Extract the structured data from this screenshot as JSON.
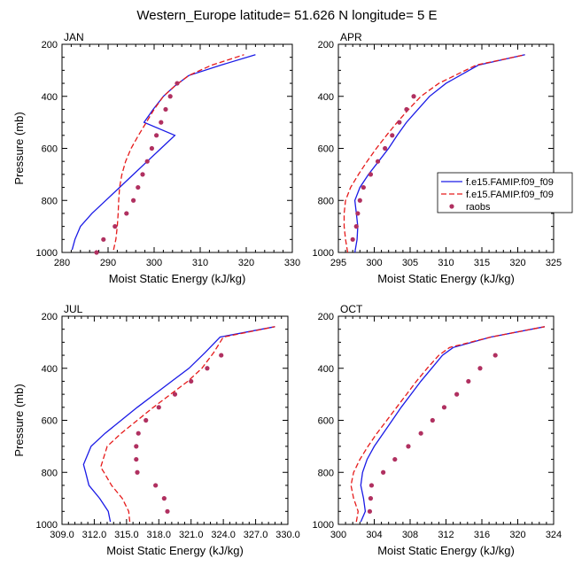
{
  "figure": {
    "title": "Western_Europe  latitude= 51.626 N longitude= 5 E"
  },
  "colors": {
    "model1": "#1a1ae6",
    "model2": "#e61a1a",
    "raobs": "#b03060"
  },
  "legend": {
    "placement": "right",
    "entries": [
      "f.e15.FAMIP.f09_f09",
      "f.e15.FAMIP.f09_f09",
      "raobs"
    ]
  },
  "chart_data": [
    {
      "type": "line",
      "panel": "JAN",
      "title": "JAN",
      "xlabel": "Moist Static Energy (kJ/kg)",
      "ylabel": "Pressure (mb)",
      "xlim": [
        280,
        330
      ],
      "ylim": [
        200,
        1000
      ],
      "y_inverted": true,
      "xticks": [
        280,
        290,
        300,
        310,
        320,
        330
      ],
      "xtick_labels": [
        "280",
        "290",
        "300",
        "310",
        "320",
        "330"
      ],
      "yticks": [
        200,
        400,
        600,
        800,
        1000
      ],
      "series": [
        {
          "name": "f.e15.FAMIP.f09_f09",
          "style": "solid",
          "points": [
            [
              282.2,
              990
            ],
            [
              282.8,
              950
            ],
            [
              284,
              900
            ],
            [
              286.5,
              850
            ],
            [
              289.5,
              800
            ],
            [
              292.5,
              750
            ],
            [
              295.5,
              700
            ],
            [
              298.5,
              650
            ],
            [
              301.5,
              600
            ],
            [
              304.5,
              550
            ],
            [
              297.8,
              500
            ],
            [
              299.8,
              450
            ],
            [
              302,
              400
            ],
            [
              304.5,
              360
            ],
            [
              307.5,
              320
            ],
            [
              314.5,
              280
            ],
            [
              322,
              240
            ]
          ]
        },
        {
          "name": "f.e15.FAMIP.f09_f09",
          "style": "dashed",
          "points": [
            [
              291.2,
              990
            ],
            [
              291.7,
              950
            ],
            [
              292,
              900
            ],
            [
              292.2,
              850
            ],
            [
              292.3,
              800
            ],
            [
              292.5,
              750
            ],
            [
              293,
              700
            ],
            [
              293.8,
              650
            ],
            [
              295,
              600
            ],
            [
              296.6,
              550
            ],
            [
              298.3,
              500
            ],
            [
              300,
              450
            ],
            [
              302,
              400
            ],
            [
              304.5,
              360
            ],
            [
              307.5,
              320
            ],
            [
              312.5,
              280
            ],
            [
              319.5,
              240
            ]
          ]
        },
        {
          "name": "raobs",
          "style": "markers",
          "points": [
            [
              287.5,
              1000
            ],
            [
              289,
              950
            ],
            [
              291.5,
              900
            ],
            [
              294,
              850
            ],
            [
              295.5,
              800
            ],
            [
              296.5,
              750
            ],
            [
              297.5,
              700
            ],
            [
              298.5,
              650
            ],
            [
              299.5,
              600
            ],
            [
              300.5,
              550
            ],
            [
              301.5,
              500
            ],
            [
              302.5,
              450
            ],
            [
              303.5,
              400
            ],
            [
              305,
              350
            ]
          ]
        }
      ]
    },
    {
      "type": "line",
      "panel": "APR",
      "title": "APR",
      "xlabel": "Moist Static Energy (kJ/kg)",
      "ylabel": "",
      "xlim": [
        295,
        325
      ],
      "ylim": [
        200,
        1000
      ],
      "y_inverted": true,
      "xticks": [
        295,
        300,
        305,
        310,
        315,
        320,
        325
      ],
      "xtick_labels": [
        "295",
        "300",
        "305",
        "310",
        "315",
        "320",
        "325"
      ],
      "yticks": [
        200,
        400,
        600,
        800,
        1000
      ],
      "series": [
        {
          "name": "f.e15.FAMIP.f09_f09",
          "style": "solid",
          "points": [
            [
              297.3,
              1000
            ],
            [
              297.6,
              950
            ],
            [
              297.7,
              900
            ],
            [
              297.5,
              850
            ],
            [
              297.3,
              800
            ],
            [
              298,
              750
            ],
            [
              299.2,
              700
            ],
            [
              300.6,
              650
            ],
            [
              302,
              600
            ],
            [
              303.2,
              550
            ],
            [
              304.5,
              500
            ],
            [
              306.1,
              450
            ],
            [
              307.7,
              400
            ],
            [
              310,
              350
            ],
            [
              314.5,
              280
            ],
            [
              321,
              240
            ]
          ]
        },
        {
          "name": "f.e15.FAMIP.f09_f09",
          "style": "dashed",
          "points": [
            [
              296.3,
              1000
            ],
            [
              296,
              950
            ],
            [
              295.8,
              900
            ],
            [
              295.8,
              850
            ],
            [
              296,
              800
            ],
            [
              296.7,
              750
            ],
            [
              297.8,
              700
            ],
            [
              299,
              650
            ],
            [
              300.3,
              600
            ],
            [
              301.7,
              550
            ],
            [
              303.2,
              500
            ],
            [
              304.8,
              450
            ],
            [
              306.5,
              400
            ],
            [
              309,
              350
            ],
            [
              314.2,
              280
            ],
            [
              321,
              240
            ]
          ]
        },
        {
          "name": "raobs",
          "style": "markers",
          "points": [
            [
              297,
              950
            ],
            [
              297.5,
              900
            ],
            [
              297.7,
              850
            ],
            [
              298,
              800
            ],
            [
              298.5,
              750
            ],
            [
              299.5,
              700
            ],
            [
              300.5,
              650
            ],
            [
              301.5,
              600
            ],
            [
              302.5,
              550
            ],
            [
              303.5,
              500
            ],
            [
              304.5,
              450
            ],
            [
              305.5,
              400
            ]
          ]
        }
      ]
    },
    {
      "type": "line",
      "panel": "JUL",
      "title": "JUL",
      "xlabel": "Moist Static Energy (kJ/kg)",
      "ylabel": "Pressure (mb)",
      "xlim": [
        309,
        330
      ],
      "ylim": [
        200,
        1000
      ],
      "y_inverted": true,
      "xticks": [
        309,
        312,
        315,
        318,
        321,
        324,
        327,
        330
      ],
      "xtick_labels": [
        "309.0",
        "312.0",
        "315.0",
        "318.0",
        "321.0",
        "324.0",
        "327.0",
        "330.0"
      ],
      "yticks": [
        200,
        400,
        600,
        800,
        1000
      ],
      "series": [
        {
          "name": "f.e15.FAMIP.f09_f09",
          "style": "solid",
          "points": [
            [
              313.5,
              990
            ],
            [
              313.3,
              950
            ],
            [
              312.5,
              900
            ],
            [
              311.5,
              850
            ],
            [
              311.2,
              800
            ],
            [
              311,
              770
            ],
            [
              311.7,
              700
            ],
            [
              313,
              650
            ],
            [
              314.5,
              600
            ],
            [
              316,
              550
            ],
            [
              317.6,
              500
            ],
            [
              319.2,
              450
            ],
            [
              320.8,
              400
            ],
            [
              322.3,
              340
            ],
            [
              323.7,
              280
            ],
            [
              328.8,
              240
            ]
          ]
        },
        {
          "name": "f.e15.FAMIP.f09_f09",
          "style": "dashed",
          "points": [
            [
              315.3,
              990
            ],
            [
              315.2,
              950
            ],
            [
              314.6,
              900
            ],
            [
              313.6,
              850
            ],
            [
              312.9,
              800
            ],
            [
              312.6,
              780
            ],
            [
              313.2,
              700
            ],
            [
              314.5,
              650
            ],
            [
              316,
              600
            ],
            [
              317.5,
              550
            ],
            [
              319.1,
              500
            ],
            [
              320.7,
              450
            ],
            [
              322,
              400
            ],
            [
              323.1,
              340
            ],
            [
              324,
              280
            ],
            [
              328.8,
              240
            ]
          ]
        },
        {
          "name": "raobs",
          "style": "markers",
          "points": [
            [
              318.8,
              950
            ],
            [
              318.5,
              900
            ],
            [
              317.7,
              850
            ],
            [
              316,
              800
            ],
            [
              315.9,
              750
            ],
            [
              315.9,
              700
            ],
            [
              316.1,
              650
            ],
            [
              316.8,
              600
            ],
            [
              318,
              550
            ],
            [
              319.5,
              500
            ],
            [
              321,
              450
            ],
            [
              322.5,
              400
            ],
            [
              323.8,
              350
            ]
          ]
        }
      ]
    },
    {
      "type": "line",
      "panel": "OCT",
      "title": "OCT",
      "xlabel": "Moist Static Energy (kJ/kg)",
      "ylabel": "",
      "xlim": [
        300,
        324
      ],
      "ylim": [
        200,
        1000
      ],
      "y_inverted": true,
      "xticks": [
        300,
        304,
        308,
        312,
        316,
        320,
        324
      ],
      "xtick_labels": [
        "300",
        "304",
        "308",
        "312",
        "316",
        "320",
        "324"
      ],
      "yticks": [
        200,
        400,
        600,
        800,
        1000
      ],
      "series": [
        {
          "name": "f.e15.FAMIP.f09_f09",
          "style": "solid",
          "points": [
            [
              302.5,
              990
            ],
            [
              303,
              950
            ],
            [
              302.8,
              900
            ],
            [
              302.5,
              850
            ],
            [
              302.7,
              800
            ],
            [
              303.2,
              750
            ],
            [
              304,
              700
            ],
            [
              305,
              650
            ],
            [
              306,
              600
            ],
            [
              307,
              550
            ],
            [
              308.1,
              500
            ],
            [
              309.2,
              450
            ],
            [
              310.4,
              400
            ],
            [
              311.6,
              350
            ],
            [
              312.8,
              320
            ],
            [
              317,
              280
            ],
            [
              323,
              240
            ]
          ]
        },
        {
          "name": "f.e15.FAMIP.f09_f09",
          "style": "dashed",
          "points": [
            [
              302,
              990
            ],
            [
              302.2,
              950
            ],
            [
              301.7,
              900
            ],
            [
              301.4,
              850
            ],
            [
              301.7,
              800
            ],
            [
              302.4,
              750
            ],
            [
              303.3,
              700
            ],
            [
              304.3,
              650
            ],
            [
              305.4,
              600
            ],
            [
              306.5,
              550
            ],
            [
              307.6,
              500
            ],
            [
              308.7,
              450
            ],
            [
              309.9,
              400
            ],
            [
              311.2,
              350
            ],
            [
              312.4,
              320
            ],
            [
              317,
              280
            ],
            [
              323,
              240
            ]
          ]
        },
        {
          "name": "raobs",
          "style": "markers",
          "points": [
            [
              303.5,
              950
            ],
            [
              303.6,
              900
            ],
            [
              303.7,
              850
            ],
            [
              305,
              800
            ],
            [
              306.3,
              750
            ],
            [
              307.8,
              700
            ],
            [
              309.2,
              650
            ],
            [
              310.5,
              600
            ],
            [
              311.8,
              550
            ],
            [
              313.2,
              500
            ],
            [
              314.5,
              450
            ],
            [
              315.8,
              400
            ],
            [
              317.5,
              350
            ]
          ]
        }
      ]
    }
  ]
}
